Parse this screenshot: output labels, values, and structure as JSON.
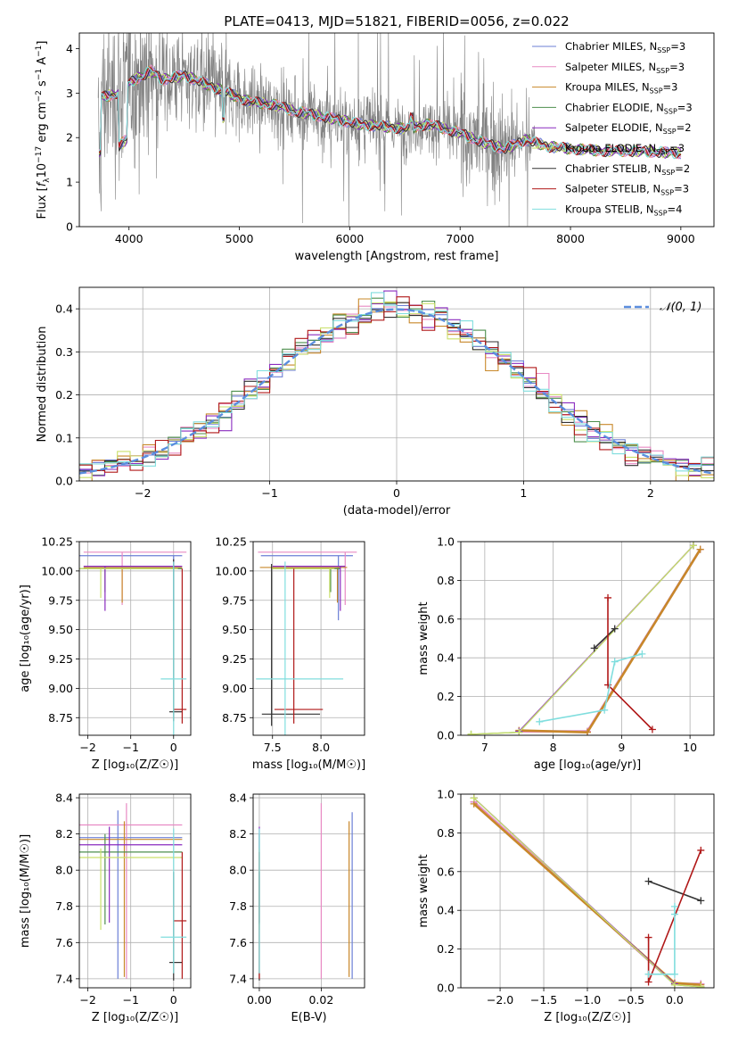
{
  "title": "PLATE=0413, MJD=51821, FIBERID=0056, z=0.022",
  "models": [
    {
      "name": "Chabrier MILES, N_SSP=3",
      "base": "Chabrier MILES, N",
      "n": "3",
      "color": "#6b7fd6"
    },
    {
      "name": "Salpeter MILES, N_SSP=3",
      "base": "Salpeter MILES, N",
      "n": "3",
      "color": "#e88ac4"
    },
    {
      "name": "Kroupa MILES, N_SSP=3",
      "base": "Kroupa MILES, N",
      "n": "3",
      "color": "#c8882a"
    },
    {
      "name": "Chabrier ELODIE, N_SSP=3",
      "base": "Chabrier ELODIE, N",
      "n": "3",
      "color": "#4e8f4e"
    },
    {
      "name": "Salpeter ELODIE, N_SSP=2",
      "base": "Salpeter ELODIE, N",
      "n": "2",
      "color": "#8a2bbf"
    },
    {
      "name": "Kroupa ELODIE, N_SSP=3",
      "base": "Kroupa ELODIE, N",
      "n": "3",
      "color": "#c9e06a"
    },
    {
      "name": "Chabrier STELIB, N_SSP=2",
      "base": "Chabrier STELIB, N",
      "n": "2",
      "color": "#333333"
    },
    {
      "name": "Salpeter STELIB, N_SSP=3",
      "base": "Salpeter STELIB, N",
      "n": "3",
      "color": "#b01818"
    },
    {
      "name": "Kroupa STELIB, N_SSP=4",
      "base": "Kroupa STELIB, N",
      "n": "4",
      "color": "#80dede"
    }
  ],
  "normal_label": "𝒩(0, 1)",
  "chart_data": [
    {
      "id": "spectrum",
      "type": "line",
      "xlabel": "wavelength [Angstrom, rest frame]",
      "ylabel_parts": [
        "Flux [",
        "f",
        "λ",
        "10",
        "−17",
        " erg cm",
        "−2",
        " s",
        "−1",
        " A",
        "−1",
        "]"
      ],
      "xlim": [
        3550,
        9300
      ],
      "ylim": [
        0,
        4.35
      ],
      "xticks": [
        4000,
        5000,
        6000,
        7000,
        8000,
        9000
      ],
      "yticks": [
        0,
        1,
        2,
        3,
        4
      ],
      "grid": false,
      "legend": "top-right",
      "data_range_x": [
        3720,
        9000
      ],
      "continuum": [
        [
          3750,
          2.9
        ],
        [
          3900,
          3.0
        ],
        [
          4050,
          3.3
        ],
        [
          4200,
          3.5
        ],
        [
          4300,
          3.3
        ],
        [
          4500,
          3.4
        ],
        [
          4700,
          3.2
        ],
        [
          4900,
          3.0
        ],
        [
          5100,
          2.8
        ],
        [
          5300,
          2.75
        ],
        [
          5500,
          2.6
        ],
        [
          5700,
          2.5
        ],
        [
          5900,
          2.4
        ],
        [
          6100,
          2.3
        ],
        [
          6300,
          2.25
        ],
        [
          6500,
          2.2
        ],
        [
          6700,
          2.3
        ],
        [
          6800,
          2.25
        ],
        [
          7000,
          2.1
        ],
        [
          7200,
          1.9
        ],
        [
          7400,
          1.75
        ],
        [
          7600,
          1.95
        ],
        [
          7800,
          1.8
        ],
        [
          8000,
          1.75
        ],
        [
          8300,
          1.7
        ],
        [
          8600,
          1.7
        ],
        [
          9000,
          1.65
        ]
      ]
    },
    {
      "id": "residuals",
      "type": "histogram",
      "xlabel": "(data-model)/error",
      "ylabel": "Normed distribution",
      "xlim": [
        -2.5,
        2.5
      ],
      "ylim": [
        0,
        0.45
      ],
      "xticks": [
        -2,
        -1,
        0,
        1,
        2
      ],
      "yticks": [
        0.0,
        0.1,
        0.2,
        0.3,
        0.4
      ],
      "grid": true,
      "legend": "top-right",
      "normal": {
        "mean": 0,
        "sigma": 1
      }
    },
    {
      "id": "age_vs_Z",
      "type": "errorbar",
      "xlabel": "Z [log₁₀(Z/Z☉)]",
      "ylabel": "age  [log₁₀(age/yr)]",
      "xlim": [
        -2.2,
        0.4
      ],
      "ylim": [
        8.6,
        10.25
      ],
      "xticks": [
        -2,
        -1,
        0
      ],
      "yticks": [
        8.75,
        9.0,
        9.25,
        9.5,
        9.75,
        10.0,
        10.25
      ],
      "grid": true,
      "points": [
        {
          "m": 0,
          "x": 0.0,
          "y": 10.13,
          "xerr": [
            2.2,
            0.2
          ],
          "yerr": [
            0.55,
            0.0
          ]
        },
        {
          "m": 1,
          "x": -1.2,
          "y": 10.16,
          "xerr": [
            0.9,
            1.5
          ],
          "yerr": [
            0.45,
            0.0
          ]
        },
        {
          "m": 2,
          "x": -1.2,
          "y": 10.03,
          "xerr": [
            0.9,
            1.4
          ],
          "yerr": [
            0.3,
            0.0
          ]
        },
        {
          "m": 3,
          "x": -1.6,
          "y": 10.02,
          "xerr": [
            0.6,
            1.8
          ],
          "yerr": [
            0.2,
            0.0
          ]
        },
        {
          "m": 4,
          "x": -1.6,
          "y": 10.04,
          "xerr": [
            0.5,
            1.8
          ],
          "yerr": [
            0.38,
            0.0
          ]
        },
        {
          "m": 5,
          "x": -1.7,
          "y": 10.02,
          "xerr": [
            0.5,
            1.8
          ],
          "yerr": [
            0.25,
            0.0
          ]
        },
        {
          "m": 6,
          "x": 0.0,
          "y": 8.8,
          "xerr": [
            0.1,
            0.2
          ],
          "yerr": [
            0.08,
            1.3
          ]
        },
        {
          "m": 7,
          "x": 0.2,
          "y": 8.82,
          "xerr": [
            0.2,
            0.1
          ],
          "yerr": [
            0.12,
            1.2
          ]
        },
        {
          "m": 8,
          "x": 0.0,
          "y": 9.08,
          "xerr": [
            0.3,
            0.3
          ],
          "yerr": [
            0.5,
            1.0
          ]
        }
      ]
    },
    {
      "id": "age_vs_mass",
      "type": "errorbar",
      "xlabel": "mass [log₁₀(M/M☉)]",
      "ylabel": "",
      "xlim": [
        7.3,
        8.45
      ],
      "ylim": [
        8.6,
        10.25
      ],
      "xticks": [
        7.5,
        8.0
      ],
      "yticks": [
        8.75,
        9.0,
        9.25,
        9.5,
        9.75,
        10.0,
        10.25
      ],
      "grid": true,
      "points": [
        {
          "m": 0,
          "x": 8.18,
          "y": 10.13,
          "xerr": [
            0.8,
            0.15
          ],
          "yerr": [
            0.55,
            0.0
          ]
        },
        {
          "m": 1,
          "x": 8.25,
          "y": 10.16,
          "xerr": [
            0.9,
            0.12
          ],
          "yerr": [
            0.45,
            0.0
          ]
        },
        {
          "m": 2,
          "x": 8.17,
          "y": 10.03,
          "xerr": [
            0.8,
            0.1
          ],
          "yerr": [
            0.3,
            0.0
          ]
        },
        {
          "m": 3,
          "x": 8.1,
          "y": 10.02,
          "xerr": [
            0.6,
            0.1
          ],
          "yerr": [
            0.2,
            0.0
          ]
        },
        {
          "m": 4,
          "x": 8.2,
          "y": 10.04,
          "xerr": [
            0.7,
            0.05
          ],
          "yerr": [
            0.38,
            0.0
          ]
        },
        {
          "m": 5,
          "x": 8.09,
          "y": 10.02,
          "xerr": [
            0.6,
            0.05
          ],
          "yerr": [
            0.25,
            0.0
          ]
        },
        {
          "m": 6,
          "x": 7.49,
          "y": 8.78,
          "xerr": [
            0.1,
            0.5
          ],
          "yerr": [
            0.1,
            1.28
          ]
        },
        {
          "m": 7,
          "x": 7.72,
          "y": 8.82,
          "xerr": [
            0.2,
            0.3
          ],
          "yerr": [
            0.12,
            1.2
          ]
        },
        {
          "m": 8,
          "x": 7.63,
          "y": 9.08,
          "xerr": [
            0.3,
            0.6
          ],
          "yerr": [
            0.5,
            1.0
          ]
        }
      ]
    },
    {
      "id": "weight_vs_age",
      "type": "line",
      "xlabel": "age  [log₁₀(age/yr)]",
      "ylabel": "mass weight",
      "xlim": [
        6.65,
        10.35
      ],
      "ylim": [
        0,
        1.0
      ],
      "xticks": [
        7,
        8,
        9,
        10
      ],
      "yticks": [
        0.0,
        0.2,
        0.4,
        0.6,
        0.8,
        1.0
      ],
      "grid": true,
      "series": [
        {
          "m": 0,
          "x": [
            7.5,
            8.5,
            10.15
          ],
          "y": [
            0.02,
            0.02,
            0.96
          ]
        },
        {
          "m": 1,
          "x": [
            7.5,
            8.5,
            10.15
          ],
          "y": [
            0.02,
            0.02,
            0.96
          ]
        },
        {
          "m": 2,
          "x": [
            7.5,
            8.5,
            10.15
          ],
          "y": [
            0.025,
            0.015,
            0.96
          ]
        },
        {
          "m": 3,
          "x": [
            6.8,
            7.5,
            10.05
          ],
          "y": [
            0.005,
            0.015,
            0.98
          ]
        },
        {
          "m": 4,
          "x": [
            7.5,
            10.05
          ],
          "y": [
            0.02,
            0.98
          ]
        },
        {
          "m": 5,
          "x": [
            6.8,
            7.5,
            10.05
          ],
          "y": [
            0.005,
            0.015,
            0.98
          ]
        },
        {
          "m": 6,
          "x": [
            8.6,
            8.9
          ],
          "y": [
            0.45,
            0.55
          ]
        },
        {
          "m": 7,
          "x": [
            8.8,
            8.8,
            9.45
          ],
          "y": [
            0.71,
            0.26,
            0.03
          ]
        },
        {
          "m": 8,
          "x": [
            7.8,
            8.75,
            8.9,
            9.3
          ],
          "y": [
            0.07,
            0.13,
            0.38,
            0.42
          ]
        }
      ]
    },
    {
      "id": "mass_vs_Z",
      "type": "errorbar",
      "xlabel": "Z [log₁₀(Z/Z☉)]",
      "ylabel": "mass [log₁₀(M/M☉)]",
      "xlim": [
        -2.2,
        0.4
      ],
      "ylim": [
        7.35,
        8.42
      ],
      "xticks": [
        -2,
        -1,
        0
      ],
      "yticks": [
        7.4,
        7.6,
        7.8,
        8.0,
        8.2,
        8.4
      ],
      "grid": true,
      "points": [
        {
          "m": 0,
          "x": -1.3,
          "y": 8.18,
          "xerr": [
            0.9,
            1.5
          ],
          "yerr": [
            0.78,
            0.15
          ]
        },
        {
          "m": 1,
          "x": -1.1,
          "y": 8.25,
          "xerr": [
            1.1,
            1.3
          ],
          "yerr": [
            0.85,
            0.12
          ]
        },
        {
          "m": 2,
          "x": -1.15,
          "y": 8.17,
          "xerr": [
            1.05,
            1.35
          ],
          "yerr": [
            0.76,
            0.1
          ]
        },
        {
          "m": 3,
          "x": -1.6,
          "y": 8.1,
          "xerr": [
            0.6,
            1.8
          ],
          "yerr": [
            0.4,
            0.1
          ]
        },
        {
          "m": 4,
          "x": -1.5,
          "y": 8.14,
          "xerr": [
            0.7,
            1.7
          ],
          "yerr": [
            0.43,
            0.1
          ]
        },
        {
          "m": 5,
          "x": -1.7,
          "y": 8.07,
          "xerr": [
            0.5,
            1.9
          ],
          "yerr": [
            0.4,
            0.05
          ]
        },
        {
          "m": 6,
          "x": 0.0,
          "y": 7.49,
          "xerr": [
            0.1,
            0.2
          ],
          "yerr": [
            0.1,
            0.5
          ]
        },
        {
          "m": 7,
          "x": 0.2,
          "y": 7.72,
          "xerr": [
            0.2,
            0.1
          ],
          "yerr": [
            0.32,
            0.38
          ]
        },
        {
          "m": 8,
          "x": 0.0,
          "y": 7.63,
          "xerr": [
            0.3,
            0.3
          ],
          "yerr": [
            0.2,
            0.6
          ]
        }
      ]
    },
    {
      "id": "mass_vs_ebv",
      "type": "errorbar",
      "xlabel": "E(B-V)",
      "ylabel": "",
      "xlim": [
        -0.002,
        0.034
      ],
      "ylim": [
        7.35,
        8.42
      ],
      "xticks": [
        0.0,
        0.02
      ],
      "yticks": [
        7.4,
        7.6,
        7.8,
        8.0,
        8.2,
        8.4
      ],
      "grid": true,
      "points": [
        {
          "m": 0,
          "x": 0.03,
          "y": 8.18,
          "xerr": [
            0,
            0
          ],
          "yerr": [
            0.78,
            0.14
          ]
        },
        {
          "m": 1,
          "x": 0.02,
          "y": 8.25,
          "xerr": [
            0,
            0
          ],
          "yerr": [
            0.85,
            0.12
          ]
        },
        {
          "m": 2,
          "x": 0.029,
          "y": 8.17,
          "xerr": [
            0,
            0
          ],
          "yerr": [
            0.76,
            0.1
          ]
        },
        {
          "m": 3,
          "x": 0.0,
          "y": 8.1,
          "xerr": [
            0,
            0
          ],
          "yerr": [
            0.4,
            0.1
          ]
        },
        {
          "m": 4,
          "x": 0.0,
          "y": 8.14,
          "xerr": [
            0,
            0
          ],
          "yerr": [
            0.43,
            0.1
          ]
        },
        {
          "m": 5,
          "x": 0.0,
          "y": 8.07,
          "xerr": [
            0,
            0
          ],
          "yerr": [
            0.4,
            0.05
          ]
        },
        {
          "m": 6,
          "x": 0.0,
          "y": 7.49,
          "xerr": [
            0,
            0
          ],
          "yerr": [
            0.1,
            0.5
          ]
        },
        {
          "m": 7,
          "x": 0.0,
          "y": 7.72,
          "xerr": [
            0,
            0
          ],
          "yerr": [
            0.32,
            0.38
          ]
        },
        {
          "m": 8,
          "x": 0.0,
          "y": 7.63,
          "xerr": [
            0,
            0
          ],
          "yerr": [
            0.2,
            0.6
          ]
        }
      ]
    },
    {
      "id": "weight_vs_Z",
      "type": "line",
      "xlabel": "Z [log₁₀(Z/Z☉)]",
      "ylabel": "mass weight",
      "xlim": [
        -2.45,
        0.45
      ],
      "ylim": [
        0,
        1.0
      ],
      "xticks": [
        -2.0,
        -1.5,
        -1.0,
        -0.5,
        0.0
      ],
      "yticks": [
        0.0,
        0.2,
        0.4,
        0.6,
        0.8,
        1.0
      ],
      "grid": true,
      "series": [
        {
          "m": 0,
          "x": [
            -2.3,
            0.0,
            0.3
          ],
          "y": [
            0.96,
            0.02,
            0.02
          ]
        },
        {
          "m": 1,
          "x": [
            -2.3,
            0.0,
            0.3
          ],
          "y": [
            0.96,
            0.02,
            0.02
          ]
        },
        {
          "m": 2,
          "x": [
            -2.3,
            0.0,
            0.3
          ],
          "y": [
            0.95,
            0.025,
            0.015
          ]
        },
        {
          "m": 3,
          "x": [
            -2.3,
            0.0,
            0.3
          ],
          "y": [
            0.98,
            0.015,
            0.005
          ]
        },
        {
          "m": 4,
          "x": [
            -2.3,
            0.0
          ],
          "y": [
            0.98,
            0.02
          ]
        },
        {
          "m": 5,
          "x": [
            -2.3,
            0.0,
            0.3
          ],
          "y": [
            0.98,
            0.015,
            0.005
          ]
        },
        {
          "m": 6,
          "x": [
            -0.3,
            0.3
          ],
          "y": [
            0.55,
            0.45
          ]
        },
        {
          "m": 7,
          "x": [
            -0.3,
            -0.3,
            0.3
          ],
          "y": [
            0.26,
            0.03,
            0.71
          ]
        },
        {
          "m": 8,
          "x": [
            -0.3,
            0.0,
            0.0,
            0.0
          ],
          "y": [
            0.07,
            0.07,
            0.38,
            0.42
          ]
        }
      ]
    }
  ]
}
